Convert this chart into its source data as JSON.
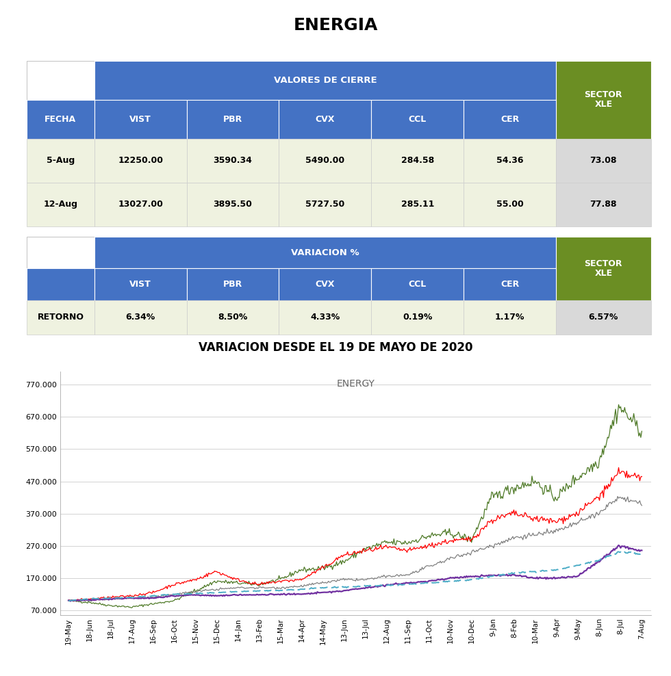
{
  "title": "ENERGIA",
  "chart_subtitle": "VARIACION DESDE EL 19 DE MAYO DE 2020",
  "chart_inner_title": "ENERGY",
  "table1_header_main": "VALORES DE CIERRE",
  "table2_header_main": "VARIACION %",
  "col_headers": [
    "FECHA",
    "VIST",
    "PBR",
    "CVX",
    "CCL",
    "CER"
  ],
  "row1": [
    "5-Aug",
    "12250.00",
    "3590.34",
    "5490.00",
    "284.58",
    "54.36"
  ],
  "row1_sector": "73.08",
  "row2": [
    "12-Aug",
    "13027.00",
    "3895.50",
    "5727.50",
    "285.11",
    "55.00"
  ],
  "row2_sector": "77.88",
  "retorno_row": [
    "RETORNO",
    "6.34%",
    "8.50%",
    "4.33%",
    "0.19%",
    "1.17%"
  ],
  "retorno_sector": "6.57%",
  "blue_header_color": "#4472C4",
  "green_sector_color": "#6B8E23",
  "light_green_row_color": "#EFF2E0",
  "light_gray_sector_col": "#D9D9D9",
  "white_color": "#FFFFFF",
  "y_ticks": [
    70000,
    170000,
    270000,
    370000,
    470000,
    570000,
    670000,
    770000
  ],
  "x_labels": [
    "19-May",
    "18-Jun",
    "18-Jul",
    "17-Aug",
    "16-Sep",
    "16-Oct",
    "15-Nov",
    "15-Dec",
    "14-Jan",
    "13-Feb",
    "15-Mar",
    "14-Apr",
    "14-May",
    "13-Jun",
    "13-Jul",
    "12-Aug",
    "11-Sep",
    "11-Oct",
    "10-Nov",
    "10-Dec",
    "9-Jan",
    "8-Feb",
    "10-Mar",
    "9-Apr",
    "9-May",
    "8-Jun",
    "8-Jul",
    "7-Aug"
  ],
  "line_colors": {
    "VIST": "#4F7A28",
    "PBR": "#FF0000",
    "CVX": "#808080",
    "CCL": "#7030A0",
    "CER": "#4BACC6"
  },
  "background_color": "#FFFFFF"
}
